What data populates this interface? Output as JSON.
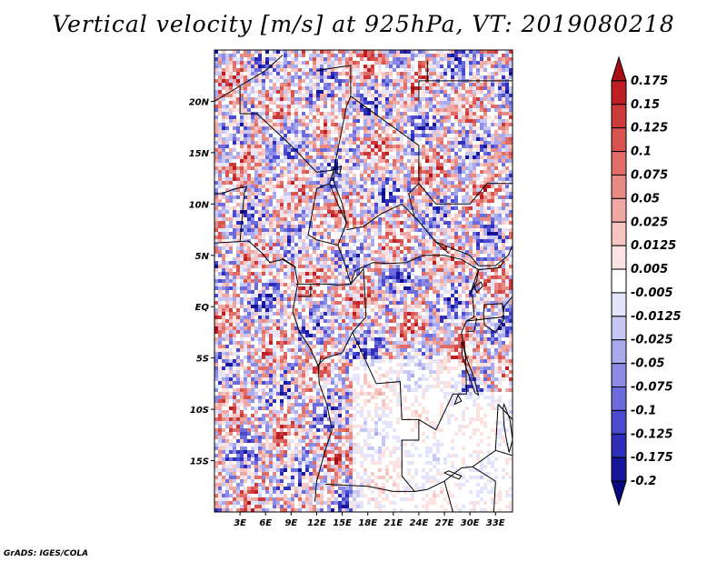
{
  "title": "Vertical velocity [m/s] at 925hPa, VT: 2019080218",
  "credit": "GrADS: IGES/COLA",
  "map": {
    "lon_range": [
      0,
      35
    ],
    "lat_range": [
      -20,
      25
    ],
    "lat_ticks": [
      "20N",
      "15N",
      "10N",
      "5N",
      "EQ",
      "5S",
      "10S",
      "15S"
    ],
    "lon_ticks": [
      "3E",
      "6E",
      "9E",
      "12E",
      "15E",
      "18E",
      "21E",
      "24E",
      "27E",
      "30E",
      "33E"
    ]
  },
  "colorbar": {
    "levels": [
      "0.175",
      "0.15",
      "0.125",
      "0.1",
      "0.075",
      "0.05",
      "0.025",
      "0.0125",
      "0.005",
      "-0.005",
      "-0.0125",
      "-0.025",
      "-0.05",
      "-0.075",
      "-0.1",
      "-0.125",
      "-0.175",
      "-0.2"
    ],
    "colors": [
      "#a50f15",
      "#bd1f24",
      "#cb3a38",
      "#d9534f",
      "#e06d68",
      "#e88a84",
      "#efa8a3",
      "#f5c6c2",
      "#fbe3e1",
      "#ffffff",
      "#e4e4fb",
      "#c7c7f5",
      "#a9a9ee",
      "#8b8be6",
      "#6b6bdc",
      "#4b4bcf",
      "#2e2eb8",
      "#16169c",
      "#0a0a80"
    ]
  }
}
